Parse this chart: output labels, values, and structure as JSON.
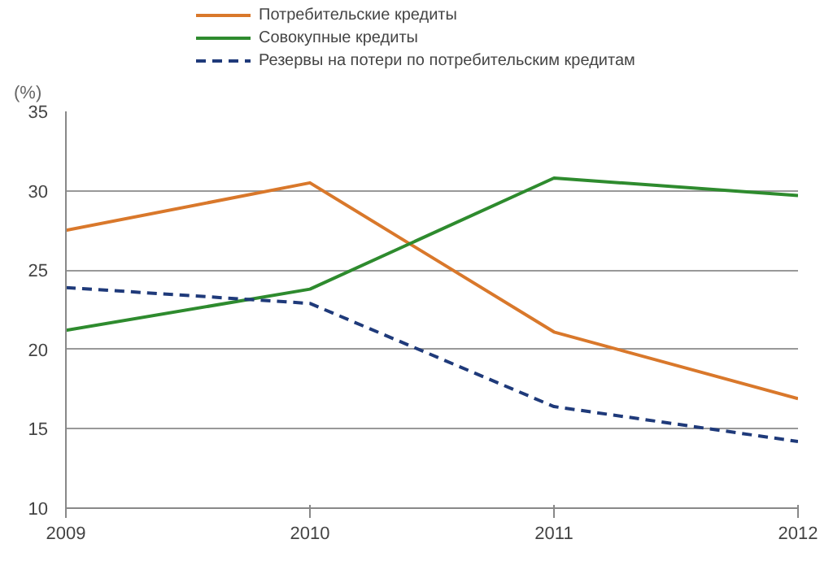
{
  "chart_data": {
    "type": "line",
    "ylabel": "(%)",
    "x": [
      2009,
      2010,
      2011,
      2012
    ],
    "series": [
      {
        "name": "Потребительские кредиты",
        "color": "#d9782b",
        "values": [
          27.5,
          30.5,
          21.1,
          16.9
        ]
      },
      {
        "name": "Совокупные кредиты",
        "color": "#2e8b2e",
        "values": [
          21.2,
          23.8,
          30.8,
          29.7
        ]
      },
      {
        "name": "Резервы на потери по потребительским кредитам",
        "color": "#1f3a7a",
        "values": [
          23.9,
          22.9,
          16.4,
          14.2
        ],
        "line_style": "dashed"
      }
    ],
    "xlim": [
      2009,
      2012
    ],
    "xticks": [
      2009,
      2010,
      2011,
      2012
    ],
    "ylim": [
      10,
      35
    ],
    "yticks": [
      10,
      15,
      20,
      25,
      30,
      35
    ],
    "grid": "y",
    "legend": "top",
    "marker": "none",
    "line_style": "solid"
  }
}
